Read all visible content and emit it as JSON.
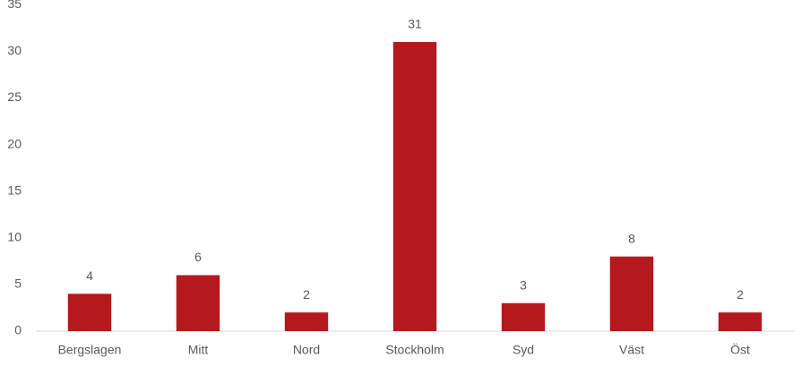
{
  "chart_data": {
    "type": "bar",
    "categories": [
      "Bergslagen",
      "Mitt",
      "Nord",
      "Stockholm",
      "Syd",
      "Väst",
      "Öst"
    ],
    "values": [
      4,
      6,
      2,
      31,
      3,
      8,
      2
    ],
    "color": "#b5191d",
    "ylim": [
      0,
      35
    ],
    "yticks": [
      0,
      5,
      10,
      15,
      20,
      25,
      30,
      35
    ],
    "grid": false,
    "data_labels": true
  }
}
